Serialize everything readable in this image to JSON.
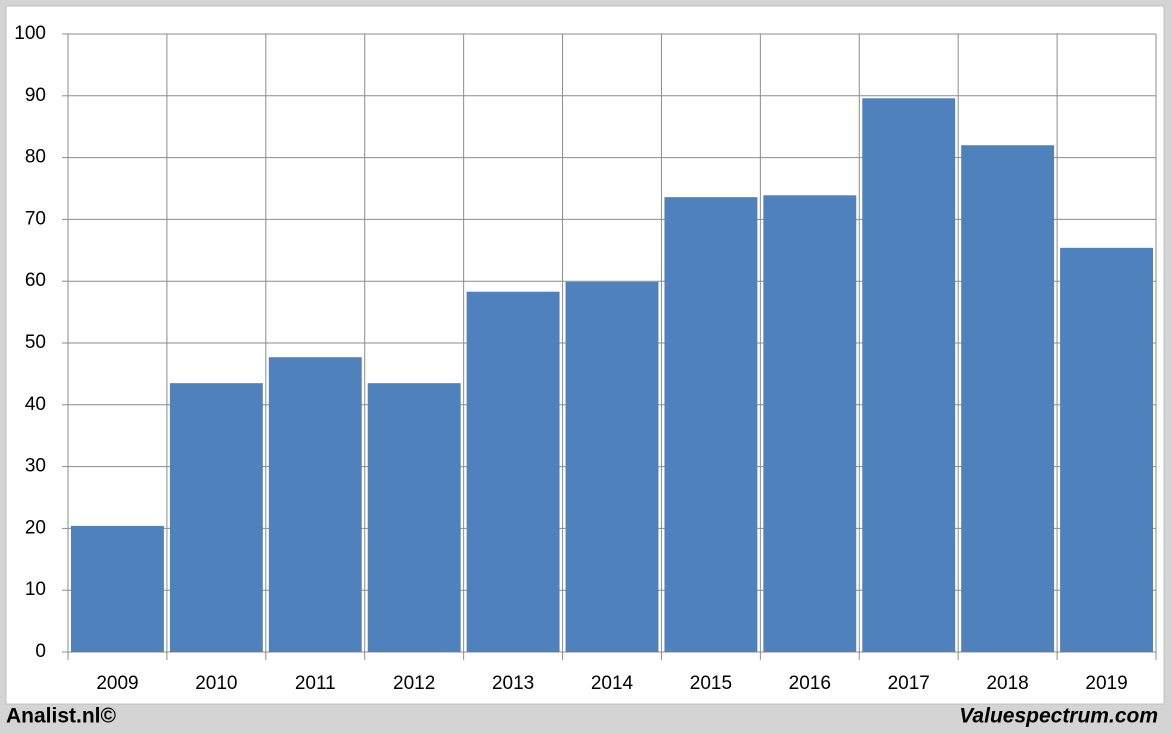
{
  "chart_data": {
    "type": "bar",
    "categories": [
      "2009",
      "2010",
      "2011",
      "2012",
      "2013",
      "2014",
      "2015",
      "2016",
      "2017",
      "2018",
      "2019"
    ],
    "values": [
      20.4,
      43.5,
      47.7,
      43.5,
      58.3,
      59.9,
      73.6,
      73.9,
      89.6,
      82.0,
      65.4
    ],
    "color": "#4f81bd",
    "ylim": [
      0,
      100
    ],
    "yticks": [
      0,
      10,
      20,
      30,
      40,
      50,
      60,
      70,
      80,
      90,
      100
    ],
    "grid": true
  },
  "footer": {
    "left": "Analist.nl©",
    "right": "Valuespectrum.com"
  }
}
